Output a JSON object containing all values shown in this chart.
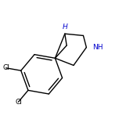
{
  "bg_color": "#ffffff",
  "bond_color": "#000000",
  "atom_colors": {
    "Cl": "#000000",
    "H": "#0000cd",
    "NH": "#0000cd"
  },
  "font_size_cl": 6.5,
  "font_size_h": 6.5,
  "line_width": 1.0,
  "figsize": [
    1.52,
    1.52
  ],
  "dpi": 100
}
